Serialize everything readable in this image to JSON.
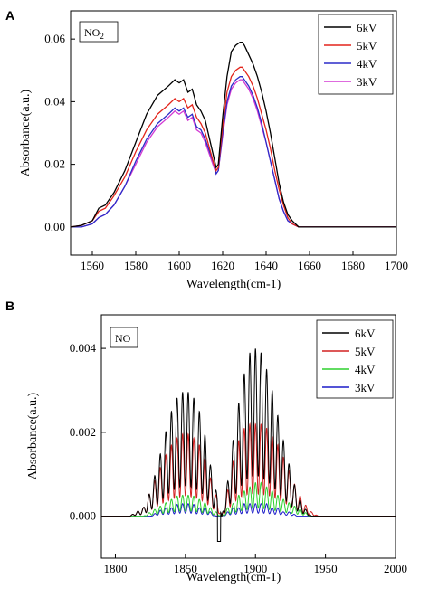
{
  "chart_data": [
    {
      "type": "line",
      "panel_label": "A",
      "species_label": "NO",
      "species_subscript": "2",
      "xlabel": "Wavelength(cm-1)",
      "ylabel": "Absorbance(a.u.)",
      "xlim": [
        1550,
        1700
      ],
      "ylim": [
        -0.009,
        0.069
      ],
      "xticks": [
        1560,
        1580,
        1600,
        1620,
        1640,
        1660,
        1680,
        1700
      ],
      "xtick_labels": [
        "1560",
        "1580",
        "1600",
        "1620",
        "1640",
        "1660",
        "1680",
        "1700"
      ],
      "yticks": [
        0.0,
        0.02,
        0.04,
        0.06
      ],
      "ytick_labels": [
        "0.00",
        "0.02",
        "0.04",
        "0.06"
      ],
      "grid": false,
      "legend_position": "top-right",
      "series": [
        {
          "name": "6kV",
          "color": "#000000",
          "x": [
            1550,
            1555,
            1560,
            1563,
            1566,
            1570,
            1575,
            1580,
            1585,
            1590,
            1595,
            1598,
            1600,
            1602,
            1604,
            1606,
            1608,
            1610,
            1612,
            1614,
            1616,
            1617,
            1618,
            1620,
            1622,
            1624,
            1626,
            1628,
            1629,
            1630,
            1632,
            1634,
            1636,
            1638,
            1640,
            1642,
            1644,
            1646,
            1648,
            1650,
            1652,
            1655,
            1660,
            1670,
            1680,
            1690,
            1700
          ],
          "y": [
            0.0,
            0.0005,
            0.002,
            0.006,
            0.007,
            0.011,
            0.018,
            0.027,
            0.036,
            0.042,
            0.045,
            0.047,
            0.046,
            0.047,
            0.043,
            0.044,
            0.039,
            0.037,
            0.034,
            0.028,
            0.022,
            0.019,
            0.02,
            0.035,
            0.048,
            0.056,
            0.058,
            0.059,
            0.059,
            0.058,
            0.055,
            0.052,
            0.048,
            0.043,
            0.037,
            0.03,
            0.022,
            0.014,
            0.008,
            0.004,
            0.002,
            0.0,
            0.0,
            0.0,
            0.0,
            0.0,
            0.0
          ]
        },
        {
          "name": "5kV",
          "color": "#e3241b",
          "x": [
            1550,
            1555,
            1560,
            1563,
            1566,
            1570,
            1575,
            1580,
            1585,
            1590,
            1595,
            1598,
            1600,
            1602,
            1604,
            1606,
            1608,
            1610,
            1612,
            1614,
            1616,
            1617,
            1618,
            1620,
            1622,
            1624,
            1626,
            1628,
            1629,
            1630,
            1632,
            1634,
            1636,
            1638,
            1640,
            1642,
            1644,
            1646,
            1648,
            1650,
            1652,
            1655,
            1660,
            1670,
            1680,
            1690,
            1700
          ],
          "y": [
            0.0,
            0.0005,
            0.002,
            0.005,
            0.006,
            0.01,
            0.016,
            0.024,
            0.031,
            0.036,
            0.039,
            0.041,
            0.04,
            0.041,
            0.038,
            0.039,
            0.035,
            0.033,
            0.03,
            0.025,
            0.02,
            0.018,
            0.019,
            0.032,
            0.043,
            0.048,
            0.05,
            0.051,
            0.051,
            0.05,
            0.048,
            0.045,
            0.041,
            0.036,
            0.031,
            0.025,
            0.018,
            0.012,
            0.007,
            0.003,
            0.001,
            0.0,
            0.0,
            0.0,
            0.0,
            0.0,
            0.0
          ]
        },
        {
          "name": "4kV",
          "color": "#2c2cc8",
          "x": [
            1550,
            1555,
            1560,
            1563,
            1566,
            1570,
            1575,
            1580,
            1585,
            1590,
            1595,
            1598,
            1600,
            1602,
            1604,
            1606,
            1608,
            1610,
            1612,
            1614,
            1616,
            1617,
            1618,
            1620,
            1622,
            1624,
            1626,
            1628,
            1629,
            1630,
            1632,
            1634,
            1636,
            1638,
            1640,
            1642,
            1644,
            1646,
            1648,
            1650,
            1652,
            1655,
            1660,
            1670,
            1680,
            1690,
            1700
          ],
          "y": [
            0.0,
            0.0,
            0.001,
            0.003,
            0.004,
            0.007,
            0.013,
            0.021,
            0.028,
            0.033,
            0.036,
            0.038,
            0.037,
            0.038,
            0.035,
            0.036,
            0.032,
            0.031,
            0.028,
            0.024,
            0.02,
            0.017,
            0.018,
            0.03,
            0.04,
            0.045,
            0.047,
            0.048,
            0.048,
            0.047,
            0.045,
            0.042,
            0.038,
            0.033,
            0.027,
            0.021,
            0.015,
            0.009,
            0.005,
            0.002,
            0.001,
            0.0,
            0.0,
            0.0,
            0.0,
            0.0,
            0.0
          ]
        },
        {
          "name": "3kV",
          "color": "#d33ad3",
          "x": [
            1550,
            1555,
            1560,
            1563,
            1566,
            1570,
            1575,
            1580,
            1585,
            1590,
            1595,
            1598,
            1600,
            1602,
            1604,
            1606,
            1608,
            1610,
            1612,
            1614,
            1616,
            1617,
            1618,
            1620,
            1622,
            1624,
            1626,
            1628,
            1629,
            1630,
            1632,
            1634,
            1636,
            1638,
            1640,
            1642,
            1644,
            1646,
            1648,
            1650,
            1652,
            1655,
            1660,
            1670,
            1680,
            1690,
            1700
          ],
          "y": [
            0.0,
            0.0,
            0.001,
            0.003,
            0.004,
            0.007,
            0.013,
            0.02,
            0.027,
            0.032,
            0.035,
            0.037,
            0.036,
            0.037,
            0.034,
            0.035,
            0.031,
            0.03,
            0.027,
            0.023,
            0.019,
            0.017,
            0.018,
            0.029,
            0.039,
            0.044,
            0.046,
            0.047,
            0.047,
            0.046,
            0.044,
            0.041,
            0.037,
            0.032,
            0.027,
            0.021,
            0.015,
            0.009,
            0.005,
            0.002,
            0.001,
            0.0,
            0.0,
            0.0,
            0.0,
            0.0,
            0.0
          ]
        }
      ]
    },
    {
      "type": "line",
      "panel_label": "B",
      "species_label": "NO",
      "xlabel": "Wavelength(cm-1)",
      "ylabel": "Absorbance(a.u.)",
      "xlim": [
        1790,
        2000
      ],
      "ylim": [
        -0.001,
        0.0048
      ],
      "xticks": [
        1800,
        1850,
        1900,
        1950,
        2000
      ],
      "xtick_labels": [
        "1800",
        "1850",
        "1900",
        "1950",
        "2000"
      ],
      "yticks": [
        0.0,
        0.002,
        0.004
      ],
      "ytick_labels": [
        "0.000",
        "0.002",
        "0.004"
      ],
      "grid": false,
      "legend_position": "top-right",
      "band_structure": {
        "line_spacing_cm": 4,
        "gap_x": 1876,
        "center_dip_x": 1874,
        "center_dip_y": -0.0006
      },
      "series": [
        {
          "name": "6kV",
          "color": "#000000",
          "x": [
            1790,
            1810,
            1820,
            1825,
            1830,
            1835,
            1840,
            1845,
            1850,
            1855,
            1860,
            1865,
            1868,
            1872,
            1876,
            1880,
            1884,
            1888,
            1892,
            1896,
            1900,
            1904,
            1908,
            1912,
            1916,
            1920,
            1925,
            1930,
            1935,
            1940,
            1945,
            1950,
            2000
          ],
          "y": [
            0.0,
            0.0,
            0.0002,
            0.0006,
            0.0012,
            0.0019,
            0.0025,
            0.0029,
            0.003,
            0.0029,
            0.0025,
            0.0018,
            0.0012,
            0.0006,
            0.0,
            0.0008,
            0.0018,
            0.0027,
            0.0034,
            0.0039,
            0.004,
            0.0039,
            0.0035,
            0.003,
            0.0024,
            0.0018,
            0.0011,
            0.0005,
            0.0002,
            0.0,
            0.0,
            0.0,
            0.0
          ]
        },
        {
          "name": "5kV",
          "color": "#d22020",
          "x": [
            1790,
            1810,
            1820,
            1825,
            1830,
            1835,
            1840,
            1845,
            1850,
            1855,
            1860,
            1865,
            1868,
            1872,
            1876,
            1880,
            1884,
            1888,
            1892,
            1896,
            1900,
            1904,
            1908,
            1912,
            1916,
            1920,
            1925,
            1930,
            1935,
            1940,
            1945,
            1950,
            2000
          ],
          "y": [
            0.0,
            0.0,
            0.0002,
            0.0006,
            0.001,
            0.0014,
            0.0017,
            0.0019,
            0.002,
            0.0019,
            0.0017,
            0.0013,
            0.0009,
            0.0005,
            0.0,
            0.0006,
            0.0013,
            0.0018,
            0.0021,
            0.0022,
            0.0022,
            0.0022,
            0.0021,
            0.0019,
            0.0017,
            0.0014,
            0.001,
            0.0006,
            0.0003,
            0.0001,
            0.0,
            0.0,
            0.0
          ]
        },
        {
          "name": "4kV",
          "color": "#2fd12f",
          "x": [
            1790,
            1810,
            1820,
            1825,
            1830,
            1835,
            1840,
            1845,
            1850,
            1855,
            1860,
            1865,
            1868,
            1872,
            1876,
            1880,
            1884,
            1888,
            1892,
            1896,
            1900,
            1904,
            1908,
            1912,
            1916,
            1920,
            1925,
            1930,
            1935,
            1940,
            1945,
            1950,
            2000
          ],
          "y": [
            0.0,
            0.0,
            0.0,
            0.0001,
            0.0002,
            0.0003,
            0.0004,
            0.0005,
            0.0005,
            0.0005,
            0.0004,
            0.0003,
            0.0002,
            0.0001,
            0.0,
            0.0002,
            0.0003,
            0.0005,
            0.0006,
            0.0007,
            0.0008,
            0.0008,
            0.0007,
            0.0006,
            0.0005,
            0.0004,
            0.0003,
            0.0002,
            0.0001,
            0.0,
            0.0,
            0.0,
            0.0
          ]
        },
        {
          "name": "3kV",
          "color": "#1c1cc8",
          "x": [
            1790,
            1810,
            1820,
            1825,
            1830,
            1835,
            1840,
            1845,
            1850,
            1855,
            1860,
            1865,
            1868,
            1872,
            1876,
            1880,
            1884,
            1888,
            1892,
            1896,
            1900,
            1904,
            1908,
            1912,
            1916,
            1920,
            1925,
            1930,
            1935,
            1940,
            1945,
            1950,
            2000
          ],
          "y": [
            0.0,
            0.0,
            0.0,
            0.0,
            0.0001,
            0.0002,
            0.0002,
            0.0003,
            0.0003,
            0.0003,
            0.0002,
            0.0002,
            0.0001,
            0.0,
            0.0,
            0.0001,
            0.0002,
            0.0002,
            0.0003,
            0.0003,
            0.0003,
            0.0003,
            0.0003,
            0.0002,
            0.0002,
            0.0001,
            0.0001,
            0.0,
            0.0,
            0.0,
            0.0,
            0.0,
            0.0
          ]
        }
      ]
    }
  ]
}
